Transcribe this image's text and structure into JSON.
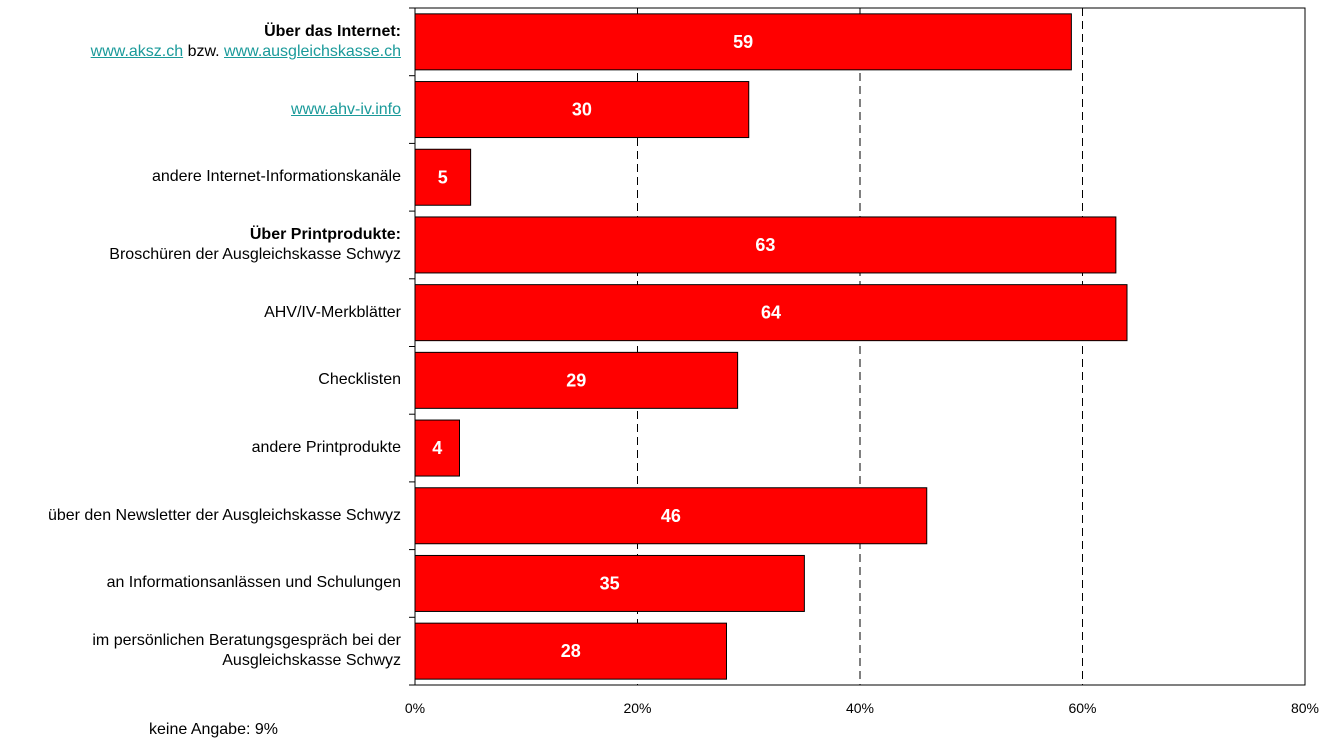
{
  "chart_data": {
    "type": "bar",
    "orientation": "horizontal",
    "xlim": [
      0,
      80
    ],
    "tick_step": 20,
    "tick_suffix": "%",
    "grid": "vertical dashed",
    "bar_color": "#ff0000",
    "label_color": "#ffffff",
    "link_color": "#1a9a9a",
    "categories": [
      {
        "heading": "Über das Internet:",
        "parts": [
          {
            "text": "www.aksz.ch",
            "link": true
          },
          {
            "text": " bzw. ",
            "link": false
          },
          {
            "text": "www.ausgleichskasse.ch",
            "link": true
          }
        ]
      },
      {
        "heading": "",
        "parts": [
          {
            "text": "www.ahv-iv.info",
            "link": true
          }
        ]
      },
      {
        "heading": "",
        "parts": [
          {
            "text": "andere Internet-Informationskanäle",
            "link": false
          }
        ]
      },
      {
        "heading": "Über Printprodukte:",
        "parts": [
          {
            "text": "Broschüren der Ausgleichskasse Schwyz",
            "link": false
          }
        ]
      },
      {
        "heading": "",
        "parts": [
          {
            "text": "AHV/IV-Merkblätter",
            "link": false
          }
        ]
      },
      {
        "heading": "",
        "parts": [
          {
            "text": "Checklisten",
            "link": false
          }
        ]
      },
      {
        "heading": "",
        "parts": [
          {
            "text": "andere Printprodukte",
            "link": false
          }
        ]
      },
      {
        "heading": "",
        "parts": [
          {
            "text": "über den Newsletter der Ausgleichskasse Schwyz",
            "link": false
          }
        ]
      },
      {
        "heading": "",
        "parts": [
          {
            "text": "an Informationsanlässen und Schulungen",
            "link": false
          }
        ]
      },
      {
        "heading": "",
        "parts": [
          {
            "text": "im persönlichen Beratungsgespräch bei der Ausgleichskasse Schwyz",
            "link": false
          }
        ]
      }
    ],
    "values": [
      59,
      30,
      5,
      63,
      64,
      29,
      4,
      46,
      35,
      28
    ],
    "value_labels": [
      "59",
      "30",
      "5",
      "63",
      "64",
      "29",
      "4",
      "46",
      "35",
      "28"
    ],
    "tick_labels": [
      "0%",
      "20%",
      "40%",
      "60%",
      "80%"
    ]
  },
  "note": "keine Angabe: 9%"
}
